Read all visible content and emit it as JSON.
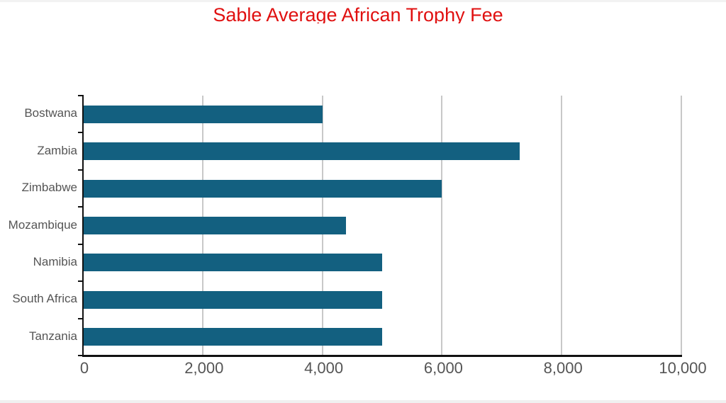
{
  "title": "Sable Average African Trophy Fee",
  "colors": {
    "bar": "#136080",
    "title": "#e01010",
    "grid": "#c8c8c8"
  },
  "x_ticks": [
    "0",
    "2,000",
    "4,000",
    "6,000",
    "8,000",
    "10,000"
  ],
  "categories": [
    "Bostwana",
    "Zambia",
    "Zimbabwe",
    "Mozambique",
    "Namibia",
    "South Africa",
    "Tanzania"
  ],
  "chart_data": {
    "type": "bar",
    "orientation": "horizontal",
    "title": "Sable Average African Trophy Fee",
    "categories": [
      "Bostwana",
      "Zambia",
      "Zimbabwe",
      "Mozambique",
      "Namibia",
      "South Africa",
      "Tanzania"
    ],
    "values": [
      4000,
      7300,
      6000,
      4400,
      5000,
      5000,
      5000
    ],
    "xlabel": "",
    "ylabel": "",
    "xlim": [
      0,
      10000
    ],
    "x_ticks": [
      0,
      2000,
      4000,
      6000,
      8000,
      10000
    ],
    "grid": "vertical",
    "legend": "none"
  }
}
